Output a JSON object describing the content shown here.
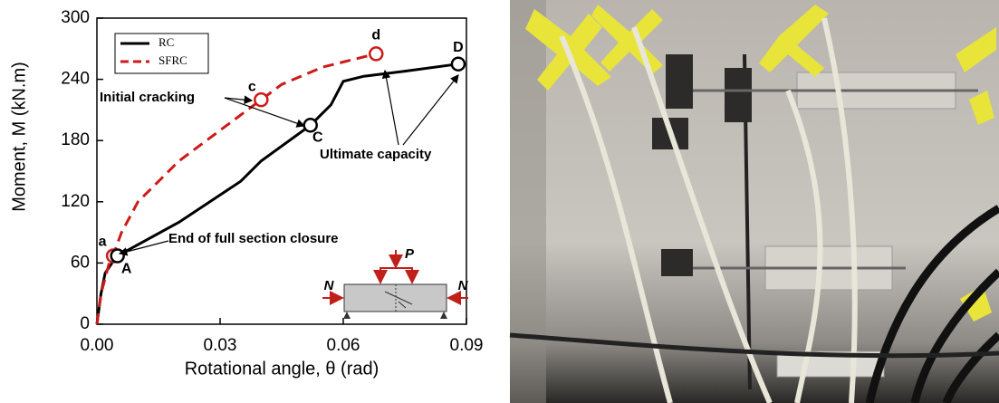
{
  "chart_data": {
    "type": "line",
    "xlabel": "Rotational angle, θ (rad)",
    "ylabel": "Moment, M (kN.m)",
    "xlim": [
      0,
      0.09
    ],
    "ylim": [
      0,
      300
    ],
    "xticks": [
      {
        "value": 0,
        "label": "0.00"
      },
      0.03,
      0.06,
      0.09
    ],
    "yticks": [
      0,
      60,
      120,
      180,
      240,
      300
    ],
    "legend": "upper left",
    "series": [
      {
        "name": "RC",
        "color": "#000000",
        "dash": false,
        "x": [
          0,
          0.001,
          0.002,
          0.004,
          0.005,
          0.02,
          0.035,
          0.04,
          0.052,
          0.057,
          0.06,
          0.065,
          0.075,
          0.088
        ],
        "values": [
          0,
          30,
          50,
          62,
          67,
          100,
          140,
          160,
          195,
          215,
          238,
          243,
          248,
          255
        ]
      },
      {
        "name": "SFRC",
        "color": "#cc1a1a",
        "dash": true,
        "x": [
          0,
          0.001,
          0.003,
          0.004,
          0.006,
          0.01,
          0.02,
          0.03,
          0.04,
          0.045,
          0.055,
          0.068
        ],
        "values": [
          0,
          30,
          60,
          68,
          90,
          120,
          160,
          190,
          220,
          235,
          252,
          265
        ]
      }
    ],
    "points": [
      {
        "label": "a",
        "x": 0.004,
        "y": 67,
        "color": "#cc1a1a"
      },
      {
        "label": "A",
        "x": 0.005,
        "y": 67,
        "color": "#000000"
      },
      {
        "label": "c",
        "x": 0.04,
        "y": 220,
        "color": "#cc1a1a"
      },
      {
        "label": "C",
        "x": 0.052,
        "y": 195,
        "color": "#000000"
      },
      {
        "label": "d",
        "x": 0.068,
        "y": 265,
        "color": "#cc1a1a"
      },
      {
        "label": "D",
        "x": 0.088,
        "y": 255,
        "color": "#000000"
      }
    ],
    "annotations": [
      "Initial cracking",
      "End of full section closure",
      "Ultimate capacity"
    ],
    "inset_labels": [
      "N",
      "P",
      "N"
    ]
  }
}
